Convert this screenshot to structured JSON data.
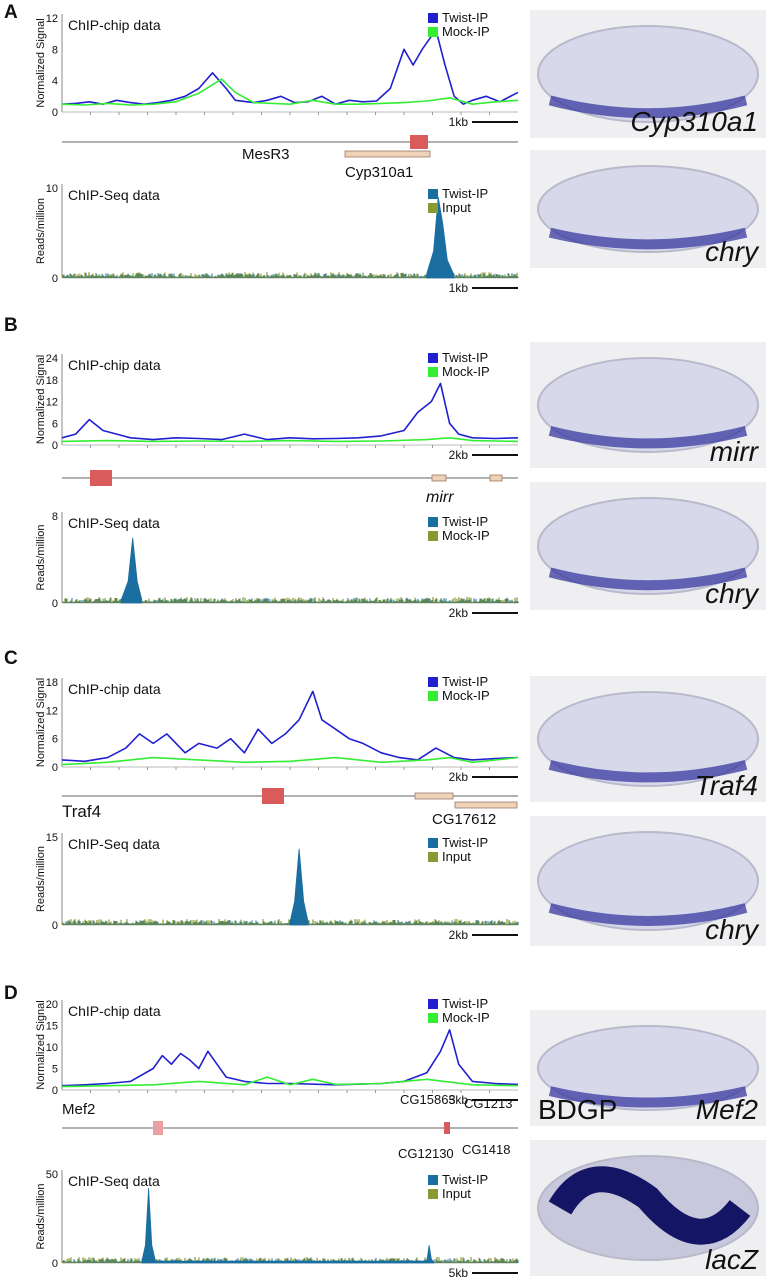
{
  "figure": {
    "panels": [
      {
        "letter": "A",
        "chip": {
          "title": "ChIP-chip data",
          "ylabel": "Normalized Signal",
          "yticks": [
            "0",
            "4",
            "8",
            "12"
          ],
          "legend": [
            "Twist-IP",
            "Mock-IP"
          ],
          "scale_label": "1kb"
        },
        "genes": [
          {
            "label": "MesR3",
            "italic": false
          },
          {
            "label": "Cyp310a1",
            "italic": false
          }
        ],
        "seq": {
          "title": "ChIP-Seq data",
          "ylabel": "Reads/million",
          "yticks": [
            "0",
            "10"
          ],
          "legend": [
            "Twist-IP",
            "Input"
          ],
          "scale_label": "1kb"
        },
        "embryos": [
          "Cyp310a1",
          "chry"
        ]
      },
      {
        "letter": "B",
        "chip": {
          "title": "ChIP-chip data",
          "ylabel": "Normalized Signal",
          "yticks": [
            "0",
            "6",
            "12",
            "18",
            "24"
          ],
          "legend": [
            "Twist-IP",
            "Mock-IP"
          ],
          "scale_label": "2kb"
        },
        "genes": [
          {
            "label": "mirr",
            "italic": true
          }
        ],
        "seq": {
          "title": "ChIP-Seq data",
          "ylabel": "Reads/million",
          "yticks": [
            "0",
            "8"
          ],
          "legend": [
            "Twist-IP",
            "Mock-IP"
          ],
          "scale_label": "2kb"
        },
        "embryos": [
          "mirr",
          "chry"
        ]
      },
      {
        "letter": "C",
        "chip": {
          "title": "ChIP-chip data",
          "ylabel": "Normalized Signal",
          "yticks": [
            "0",
            "6",
            "12",
            "18"
          ],
          "legend": [
            "Twist-IP",
            "Mock-IP"
          ],
          "scale_label": "2kb"
        },
        "genes": [
          {
            "label": "Traf4",
            "italic": false
          },
          {
            "label": "CG17612",
            "italic": false
          }
        ],
        "seq": {
          "title": "ChIP-Seq data",
          "ylabel": "Reads/million",
          "yticks": [
            "0",
            "15"
          ],
          "legend": [
            "Twist-IP",
            "Input"
          ],
          "scale_label": "2kb"
        },
        "embryos": [
          "Traf4",
          "chry"
        ]
      },
      {
        "letter": "D",
        "chip": {
          "title": "ChIP-chip data",
          "ylabel": "Normalized Signal",
          "yticks": [
            "0",
            "5",
            "10",
            "15",
            "20"
          ],
          "legend": [
            "Twist-IP",
            "Mock-IP"
          ],
          "scale_label": "5kb"
        },
        "genes": [
          {
            "label": "Mef2",
            "italic": false
          },
          {
            "label": "CG15863",
            "italic": false
          },
          {
            "label": "CG1213",
            "italic": false
          },
          {
            "label": "CG12130",
            "italic": false
          },
          {
            "label": "CG1418",
            "italic": false
          }
        ],
        "seq": {
          "title": "ChIP-Seq data",
          "ylabel": "Reads/million",
          "yticks": [
            "0",
            "50"
          ],
          "legend": [
            "Twist-IP",
            "Input"
          ],
          "scale_label": "5kb"
        },
        "embryos": [
          "Mef2",
          "lacZ"
        ],
        "embryo_source": "BDGP"
      }
    ]
  },
  "colors": {
    "twist_chip": "#2020d0",
    "mock_chip": "#33ee33",
    "twist_seq": "#1a6fa0",
    "input_seq": "#8a9a30",
    "enhancer": "#d95b5b",
    "gene": "#efd2b8",
    "stain": "#3838a0"
  },
  "chart_data": [
    {
      "panel": "A",
      "track": "ChIP-chip",
      "type": "line",
      "ylim": [
        0,
        12
      ],
      "series": [
        {
          "name": "Twist-IP",
          "x": [
            0,
            0.03,
            0.06,
            0.09,
            0.12,
            0.15,
            0.18,
            0.21,
            0.24,
            0.27,
            0.3,
            0.33,
            0.36,
            0.38,
            0.42,
            0.45,
            0.48,
            0.51,
            0.54,
            0.57,
            0.6,
            0.63,
            0.66,
            0.69,
            0.72,
            0.75,
            0.77,
            0.79,
            0.82,
            0.84,
            0.86,
            0.88,
            0.9,
            0.93,
            0.96,
            1
          ],
          "y": [
            1,
            1.1,
            1.3,
            1,
            1.5,
            1.2,
            1,
            1.2,
            1.5,
            2,
            3,
            5,
            3,
            1.5,
            1.2,
            1.5,
            2,
            1.2,
            1.3,
            2,
            1,
            1.5,
            1.3,
            1.4,
            3,
            8,
            6,
            8,
            10.5,
            6,
            2,
            1,
            1.5,
            2,
            1.3,
            2.5
          ]
        },
        {
          "name": "Mock-IP",
          "x": [
            0,
            0.05,
            0.1,
            0.15,
            0.2,
            0.25,
            0.3,
            0.35,
            0.38,
            0.42,
            0.5,
            0.55,
            0.6,
            0.65,
            0.7,
            0.75,
            0.8,
            0.85,
            0.9,
            0.95,
            1
          ],
          "y": [
            1,
            0.9,
            1.1,
            0.9,
            1,
            1.3,
            2.4,
            4.2,
            2.5,
            1.2,
            1,
            1.5,
            1,
            1,
            1.1,
            1.2,
            1.4,
            1.8,
            1,
            1.3,
            1.5
          ]
        }
      ]
    },
    {
      "panel": "A",
      "track": "ChIP-Seq",
      "type": "area",
      "ylim": [
        0,
        10
      ],
      "series": [
        {
          "name": "Twist-IP",
          "x": [
            0.8,
            0.815,
            0.825,
            0.835,
            0.845,
            0.86
          ],
          "y": [
            0.5,
            3,
            9,
            6,
            2,
            0.3
          ]
        }
      ]
    },
    {
      "panel": "B",
      "track": "ChIP-chip",
      "type": "line",
      "ylim": [
        0,
        24
      ],
      "series": [
        {
          "name": "Twist-IP",
          "x": [
            0,
            0.03,
            0.06,
            0.09,
            0.12,
            0.15,
            0.2,
            0.25,
            0.3,
            0.35,
            0.4,
            0.45,
            0.5,
            0.55,
            0.6,
            0.65,
            0.7,
            0.75,
            0.78,
            0.81,
            0.83,
            0.85,
            0.87,
            0.9,
            0.95,
            1
          ],
          "y": [
            2,
            3,
            7,
            4,
            3,
            2,
            1.5,
            2,
            1.8,
            1.5,
            3,
            1.5,
            2,
            1.7,
            1.8,
            2,
            2.5,
            4,
            9,
            12,
            17,
            6,
            3,
            2,
            1.8,
            2
          ]
        },
        {
          "name": "Mock-IP",
          "x": [
            0,
            0.1,
            0.2,
            0.3,
            0.4,
            0.5,
            0.6,
            0.7,
            0.8,
            0.85,
            0.9,
            1
          ],
          "y": [
            1,
            1.2,
            1,
            1.1,
            1,
            1.2,
            1,
            1.1,
            1.5,
            2,
            1.2,
            1
          ]
        }
      ]
    },
    {
      "panel": "B",
      "track": "ChIP-Seq",
      "type": "area",
      "ylim": [
        0,
        8
      ],
      "series": [
        {
          "name": "Twist-IP",
          "x": [
            0.13,
            0.145,
            0.155,
            0.165,
            0.175
          ],
          "y": [
            0.3,
            2,
            6,
            2,
            0.3
          ]
        }
      ]
    },
    {
      "panel": "C",
      "track": "ChIP-chip",
      "type": "line",
      "ylim": [
        0,
        18
      ],
      "series": [
        {
          "name": "Twist-IP",
          "x": [
            0,
            0.05,
            0.1,
            0.14,
            0.17,
            0.2,
            0.23,
            0.27,
            0.3,
            0.34,
            0.37,
            0.4,
            0.43,
            0.46,
            0.49,
            0.52,
            0.55,
            0.57,
            0.6,
            0.63,
            0.66,
            0.7,
            0.74,
            0.78,
            0.82,
            0.86,
            0.9,
            0.95,
            1
          ],
          "y": [
            1.5,
            1.2,
            2,
            4,
            7,
            5,
            7,
            3,
            5,
            4,
            6,
            3,
            8,
            5,
            7,
            10,
            16,
            10,
            8,
            6,
            5,
            3,
            2,
            1.5,
            4,
            2,
            1.5,
            1.8,
            2
          ]
        },
        {
          "name": "Mock-IP",
          "x": [
            0,
            0.1,
            0.2,
            0.3,
            0.4,
            0.5,
            0.6,
            0.7,
            0.8,
            0.85,
            0.9,
            1
          ],
          "y": [
            0.5,
            1,
            2,
            1.5,
            1,
            1.2,
            2,
            1,
            1.5,
            2,
            1,
            2
          ]
        }
      ]
    },
    {
      "panel": "C",
      "track": "ChIP-Seq",
      "type": "area",
      "ylim": [
        0,
        15
      ],
      "series": [
        {
          "name": "Twist-IP",
          "x": [
            0.5,
            0.51,
            0.52,
            0.53,
            0.54
          ],
          "y": [
            0.5,
            4,
            13,
            4,
            0.5
          ]
        }
      ]
    },
    {
      "panel": "D",
      "track": "ChIP-chip",
      "type": "line",
      "ylim": [
        0,
        20
      ],
      "series": [
        {
          "name": "Twist-IP",
          "x": [
            0,
            0.05,
            0.1,
            0.15,
            0.2,
            0.22,
            0.24,
            0.26,
            0.28,
            0.3,
            0.32,
            0.34,
            0.36,
            0.4,
            0.45,
            0.5,
            0.6,
            0.7,
            0.75,
            0.8,
            0.83,
            0.85,
            0.87,
            0.9,
            0.95,
            1
          ],
          "y": [
            1,
            1.2,
            1.5,
            2,
            5,
            8,
            6,
            8.5,
            7,
            5,
            9,
            6,
            3,
            2,
            1.5,
            1.5,
            1.2,
            1.5,
            2,
            4,
            9,
            14,
            6,
            2,
            1.5,
            1.3
          ]
        },
        {
          "name": "Mock-IP",
          "x": [
            0,
            0.1,
            0.2,
            0.3,
            0.4,
            0.45,
            0.5,
            0.55,
            0.6,
            0.7,
            0.8,
            0.9,
            1
          ],
          "y": [
            0.8,
            1,
            1.2,
            2,
            1.2,
            3,
            1.2,
            2.5,
            1.3,
            1.5,
            2.5,
            1.2,
            1
          ]
        }
      ]
    },
    {
      "panel": "D",
      "track": "ChIP-Seq",
      "type": "area",
      "ylim": [
        0,
        50
      ],
      "series": [
        {
          "name": "Twist-IP",
          "x": [
            0.175,
            0.183,
            0.19,
            0.197,
            0.205,
            0.8,
            0.805,
            0.81,
            0.815
          ],
          "y": [
            1,
            10,
            42,
            10,
            1,
            1,
            10,
            2,
            0.5
          ]
        }
      ]
    }
  ]
}
